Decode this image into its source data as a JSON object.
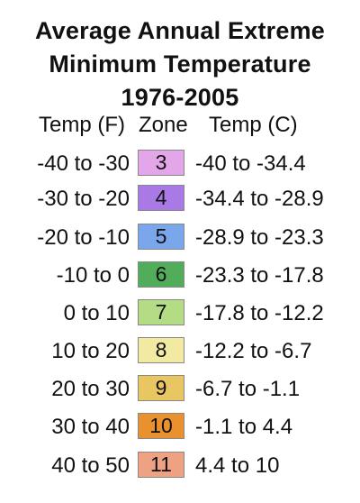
{
  "title": {
    "line1": "Average Annual Extreme",
    "line2": "Minimum Temperature",
    "line3": "1976-2005"
  },
  "headers": {
    "temp_f": "Temp (F)",
    "zone": "Zone",
    "temp_c": "Temp (C)"
  },
  "rows": [
    {
      "temp_f": "-40 to -30",
      "zone": "3",
      "temp_c": "-40 to -34.4",
      "color": "#e3a6e8"
    },
    {
      "temp_f": "-30 to -20",
      "zone": "4",
      "temp_c": "-34.4 to -28.9",
      "color": "#a97ae6"
    },
    {
      "temp_f": "-20 to -10",
      "zone": "5",
      "temp_c": "-28.9 to -23.3",
      "color": "#7aa6ec"
    },
    {
      "temp_f": "-10 to 0",
      "zone": "6",
      "temp_c": "-23.3 to -17.8",
      "color": "#52ad5a"
    },
    {
      "temp_f": "0 to 10",
      "zone": "7",
      "temp_c": "-17.8 to -12.2",
      "color": "#b4dc85"
    },
    {
      "temp_f": "10 to 20",
      "zone": "8",
      "temp_c": "-12.2 to -6.7",
      "color": "#f2e9a3"
    },
    {
      "temp_f": "20 to 30",
      "zone": "9",
      "temp_c": "-6.7 to -1.1",
      "color": "#e8c661"
    },
    {
      "temp_f": "30 to 40",
      "zone": "10",
      "temp_c": "-1.1 to 4.4",
      "color": "#e9902f"
    },
    {
      "temp_f": "40 to 50",
      "zone": "11",
      "temp_c": "4.4 to 10",
      "color": "#eea183"
    }
  ]
}
